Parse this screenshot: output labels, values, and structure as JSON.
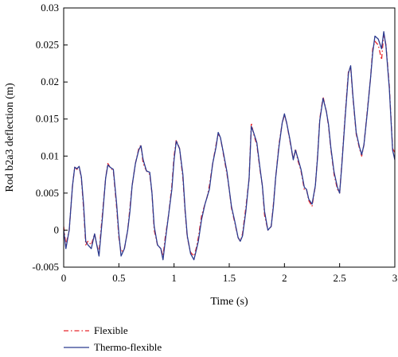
{
  "chart_data": {
    "type": "line",
    "title": "",
    "xlabel": "Time (s)",
    "ylabel": "Rod b2a3 deflection (m)",
    "xlim": [
      0,
      3
    ],
    "ylim": [
      -0.005,
      0.03
    ],
    "xticks": [
      0,
      0.5,
      1,
      1.5,
      2,
      2.5,
      3
    ],
    "xtick_labels": [
      "0",
      "0.5",
      "1",
      "1.5",
      "2",
      "2.5",
      "3"
    ],
    "yticks": [
      -0.005,
      0,
      0.005,
      0.01,
      0.015,
      0.02,
      0.025,
      0.03
    ],
    "ytick_labels": [
      "-0.005",
      "0",
      "0.005",
      "0.01",
      "0.015",
      "0.02",
      "0.025",
      "0.03"
    ],
    "grid": false,
    "legend_position": "bottom-left, below plot",
    "series": [
      {
        "name": "Flexible",
        "color": "#e8262a",
        "dash": "dash-dot",
        "x": [
          0,
          0.02,
          0.05,
          0.08,
          0.1,
          0.12,
          0.14,
          0.16,
          0.18,
          0.2,
          0.22,
          0.25,
          0.28,
          0.3,
          0.32,
          0.35,
          0.38,
          0.4,
          0.42,
          0.45,
          0.48,
          0.5,
          0.52,
          0.55,
          0.58,
          0.6,
          0.62,
          0.65,
          0.68,
          0.7,
          0.72,
          0.75,
          0.78,
          0.8,
          0.82,
          0.85,
          0.88,
          0.9,
          0.92,
          0.95,
          0.98,
          1.0,
          1.02,
          1.05,
          1.08,
          1.1,
          1.12,
          1.15,
          1.18,
          1.2,
          1.22,
          1.25,
          1.28,
          1.3,
          1.32,
          1.35,
          1.38,
          1.4,
          1.42,
          1.45,
          1.48,
          1.5,
          1.52,
          1.55,
          1.58,
          1.6,
          1.62,
          1.65,
          1.68,
          1.7,
          1.72,
          1.75,
          1.78,
          1.8,
          1.82,
          1.85,
          1.88,
          1.9,
          1.92,
          1.95,
          1.98,
          2.0,
          2.02,
          2.05,
          2.08,
          2.1,
          2.12,
          2.15,
          2.18,
          2.2,
          2.22,
          2.25,
          2.28,
          2.3,
          2.32,
          2.35,
          2.38,
          2.4,
          2.42,
          2.45,
          2.48,
          2.5,
          2.52,
          2.55,
          2.58,
          2.6,
          2.62,
          2.65,
          2.68,
          2.7,
          2.72,
          2.75,
          2.78,
          2.8,
          2.82,
          2.85,
          2.88,
          2.9,
          2.92,
          2.95,
          2.98,
          3.0
        ],
        "y": [
          0.0005,
          -0.002,
          0.0,
          0.006,
          0.0085,
          0.0082,
          0.0086,
          0.007,
          0.003,
          -0.002,
          -0.0015,
          -0.002,
          -0.0005,
          -0.002,
          -0.003,
          0.002,
          0.007,
          0.009,
          0.0085,
          0.008,
          0.003,
          -0.001,
          -0.003,
          -0.0025,
          0.0,
          0.003,
          0.006,
          0.009,
          0.011,
          0.0115,
          0.009,
          0.008,
          0.0075,
          0.005,
          0.0,
          -0.002,
          -0.0025,
          -0.0035,
          -0.001,
          0.002,
          0.006,
          0.01,
          0.0122,
          0.011,
          0.007,
          0.0025,
          -0.001,
          -0.003,
          -0.0035,
          -0.0025,
          -0.001,
          0.002,
          0.0035,
          0.0045,
          0.006,
          0.009,
          0.0115,
          0.013,
          0.0125,
          0.01,
          0.0075,
          0.0055,
          0.003,
          0.001,
          -0.001,
          -0.0015,
          -0.0005,
          0.003,
          0.007,
          0.0145,
          0.013,
          0.0115,
          0.008,
          0.006,
          0.002,
          0.0,
          0.0005,
          0.0035,
          0.007,
          0.0115,
          0.0145,
          0.0155,
          0.0145,
          0.012,
          0.0095,
          0.011,
          0.0095,
          0.008,
          0.0055,
          0.0055,
          0.004,
          0.0032,
          0.006,
          0.01,
          0.015,
          0.018,
          0.016,
          0.014,
          0.011,
          0.0075,
          0.0055,
          0.005,
          0.009,
          0.0155,
          0.0215,
          0.022,
          0.018,
          0.013,
          0.011,
          0.01,
          0.0115,
          0.016,
          0.0205,
          0.0245,
          0.0255,
          0.025,
          0.023,
          0.0265,
          0.025,
          0.0195,
          0.011,
          0.0105
        ]
      },
      {
        "name": "Thermo-flexible",
        "color": "#2b3a8f",
        "dash": "solid",
        "x": [
          0,
          0.02,
          0.05,
          0.08,
          0.1,
          0.12,
          0.14,
          0.16,
          0.18,
          0.2,
          0.22,
          0.25,
          0.28,
          0.3,
          0.32,
          0.35,
          0.38,
          0.4,
          0.42,
          0.45,
          0.48,
          0.5,
          0.52,
          0.55,
          0.58,
          0.6,
          0.62,
          0.65,
          0.68,
          0.7,
          0.72,
          0.75,
          0.78,
          0.8,
          0.82,
          0.85,
          0.88,
          0.9,
          0.92,
          0.95,
          0.98,
          1.0,
          1.02,
          1.05,
          1.08,
          1.1,
          1.12,
          1.15,
          1.18,
          1.2,
          1.22,
          1.25,
          1.28,
          1.3,
          1.32,
          1.35,
          1.38,
          1.4,
          1.42,
          1.45,
          1.48,
          1.5,
          1.52,
          1.55,
          1.58,
          1.6,
          1.62,
          1.65,
          1.68,
          1.7,
          1.72,
          1.75,
          1.78,
          1.8,
          1.82,
          1.85,
          1.88,
          1.9,
          1.92,
          1.95,
          1.98,
          2.0,
          2.02,
          2.05,
          2.08,
          2.1,
          2.12,
          2.15,
          2.18,
          2.2,
          2.22,
          2.25,
          2.28,
          2.3,
          2.32,
          2.35,
          2.38,
          2.4,
          2.42,
          2.45,
          2.48,
          2.5,
          2.52,
          2.55,
          2.58,
          2.6,
          2.62,
          2.65,
          2.68,
          2.7,
          2.72,
          2.75,
          2.78,
          2.8,
          2.82,
          2.85,
          2.88,
          2.9,
          2.92,
          2.95,
          2.98,
          3.0
        ],
        "y": [
          0.0,
          -0.0025,
          0.0,
          0.006,
          0.0085,
          0.0083,
          0.0086,
          0.0072,
          0.0035,
          -0.0015,
          -0.002,
          -0.0025,
          -0.0005,
          -0.002,
          -0.0035,
          0.0015,
          0.007,
          0.0088,
          0.0085,
          0.0082,
          0.0035,
          -0.0005,
          -0.0035,
          -0.0025,
          0.0,
          0.0025,
          0.006,
          0.009,
          0.0108,
          0.0114,
          0.0095,
          0.008,
          0.0078,
          0.005,
          0.0005,
          -0.002,
          -0.0025,
          -0.004,
          -0.0015,
          0.002,
          0.0055,
          0.0095,
          0.012,
          0.011,
          0.0075,
          0.0028,
          -0.0008,
          -0.0032,
          -0.004,
          -0.0028,
          -0.0015,
          0.0015,
          0.0035,
          0.0045,
          0.0055,
          0.009,
          0.0112,
          0.0132,
          0.0125,
          0.0102,
          0.0078,
          0.0055,
          0.0032,
          0.0012,
          -0.001,
          -0.0015,
          -0.0008,
          0.0025,
          0.007,
          0.014,
          0.0132,
          0.0118,
          0.0082,
          0.006,
          0.0025,
          0.0,
          0.0005,
          0.0032,
          0.007,
          0.0112,
          0.0145,
          0.0157,
          0.0145,
          0.0122,
          0.0095,
          0.0108,
          0.0098,
          0.0082,
          0.0058,
          0.0055,
          0.0042,
          0.0035,
          0.006,
          0.0098,
          0.0148,
          0.0178,
          0.016,
          0.0142,
          0.0112,
          0.0078,
          0.0058,
          0.005,
          0.0088,
          0.0152,
          0.0212,
          0.0222,
          0.0182,
          0.0132,
          0.0112,
          0.0102,
          0.0115,
          0.0158,
          0.0205,
          0.024,
          0.0262,
          0.0258,
          0.0245,
          0.0268,
          0.0248,
          0.0192,
          0.0108,
          0.0095
        ]
      }
    ]
  }
}
